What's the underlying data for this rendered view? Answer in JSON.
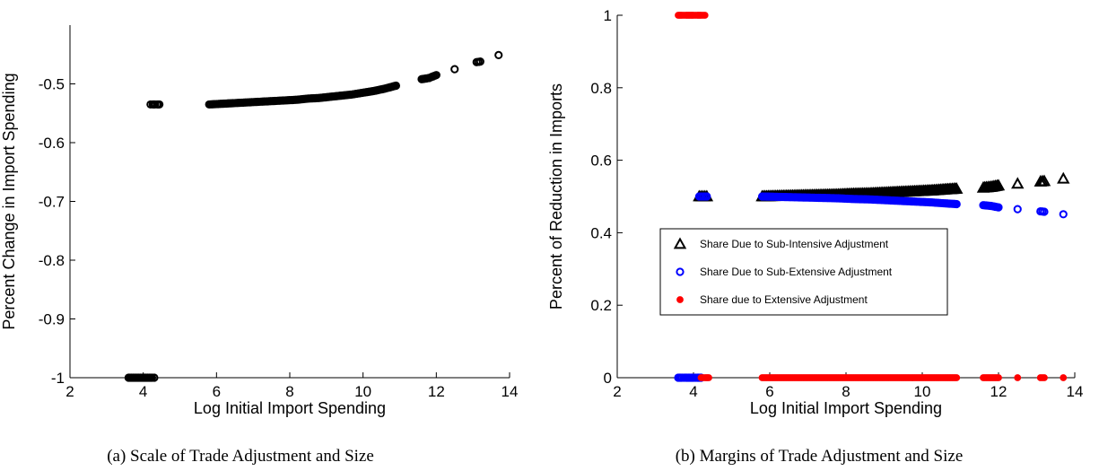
{
  "captions": {
    "a": "(a) Scale of Trade Adjustment and Size",
    "b": "(b) Margins of Trade Adjustment and Size"
  },
  "chart_data": [
    {
      "type": "scatter",
      "xlabel": "Log Initial Import Spending",
      "ylabel": "Percent Change in Import Spending",
      "xlim": [
        2,
        14
      ],
      "ylim": [
        -1,
        -0.4
      ],
      "xticks": [
        "2",
        "4",
        "6",
        "8",
        "10",
        "12",
        "14"
      ],
      "yticks": [
        "-1",
        "-0.9",
        "-0.8",
        "-0.7",
        "-0.6",
        "-0.5"
      ],
      "grid": false,
      "series": [
        {
          "marker": "open-circle",
          "color": "#000000",
          "x": [
            3.6,
            3.68,
            3.76,
            3.84,
            3.92,
            4.0,
            4.08,
            4.16,
            4.24,
            4.3,
            4.2,
            4.26,
            4.32,
            4.38,
            4.44,
            5.8,
            6.1,
            6.4,
            6.7,
            7.0,
            7.3,
            7.6,
            7.9,
            8.2,
            8.5,
            8.8,
            9.1,
            9.4,
            9.7,
            10.0,
            10.3,
            10.6,
            10.9,
            11.6,
            11.8,
            12.0,
            12.5,
            13.1,
            13.2,
            13.7
          ],
          "y": [
            -1,
            -1,
            -1,
            -1,
            -1,
            -1,
            -1,
            -1,
            -1,
            -1,
            -0.535,
            -0.535,
            -0.535,
            -0.535,
            -0.535,
            -0.535,
            -0.534,
            -0.533,
            -0.532,
            -0.531,
            -0.53,
            -0.529,
            -0.528,
            -0.527,
            -0.525,
            -0.524,
            -0.522,
            -0.52,
            -0.518,
            -0.515,
            -0.512,
            -0.508,
            -0.503,
            -0.492,
            -0.49,
            -0.485,
            -0.475,
            -0.463,
            -0.462,
            -0.451
          ]
        }
      ]
    },
    {
      "type": "scatter",
      "xlabel": "Log Initial Import Spending",
      "ylabel": "Percent of Reduction in Imports",
      "xlim": [
        2,
        14
      ],
      "ylim": [
        0,
        1
      ],
      "xticks": [
        "2",
        "4",
        "6",
        "8",
        "10",
        "12",
        "14"
      ],
      "yticks": [
        "0",
        "0.2",
        "0.4",
        "0.6",
        "0.8",
        "1"
      ],
      "grid": false,
      "legend": "center-left",
      "series": [
        {
          "name": "Share Due to Sub-Intensive Adjustment",
          "marker": "open-triangle",
          "color": "#000000",
          "x": [
            4.15,
            4.25,
            4.35,
            5.8,
            6.2,
            6.6,
            7.0,
            7.4,
            7.8,
            8.2,
            8.6,
            9.0,
            9.4,
            9.8,
            10.2,
            10.6,
            10.9,
            11.6,
            11.8,
            12.0,
            12.5,
            13.1,
            13.2,
            13.7
          ],
          "y": [
            0.5,
            0.5,
            0.5,
            0.5,
            0.501,
            0.502,
            0.503,
            0.504,
            0.505,
            0.507,
            0.508,
            0.51,
            0.512,
            0.514,
            0.516,
            0.519,
            0.521,
            0.524,
            0.526,
            0.53,
            0.535,
            0.541,
            0.542,
            0.549
          ]
        },
        {
          "name": "Share Due to Sub-Extensive Adjustment",
          "marker": "open-circle",
          "color": "#0000ff",
          "x": [
            3.6,
            3.7,
            3.8,
            3.9,
            4.0,
            4.1,
            4.2,
            4.15,
            4.25,
            4.35,
            5.8,
            6.2,
            6.6,
            7.0,
            7.4,
            7.8,
            8.2,
            8.6,
            9.0,
            9.4,
            9.8,
            10.2,
            10.6,
            10.9,
            11.6,
            11.8,
            12.0,
            12.5,
            13.1,
            13.2,
            13.7
          ],
          "y": [
            0,
            0,
            0,
            0,
            0,
            0,
            0,
            0.5,
            0.5,
            0.5,
            0.5,
            0.499,
            0.498,
            0.497,
            0.496,
            0.495,
            0.493,
            0.492,
            0.49,
            0.488,
            0.486,
            0.484,
            0.481,
            0.479,
            0.476,
            0.474,
            0.47,
            0.465,
            0.459,
            0.458,
            0.451
          ]
        },
        {
          "name": "Share due to Extensive Adjustment",
          "marker": "filled-circle",
          "color": "#ff0000",
          "x": [
            3.6,
            3.7,
            3.8,
            3.9,
            4.0,
            4.1,
            4.2,
            4.3,
            4.2,
            4.3,
            4.4,
            5.8,
            6.2,
            6.6,
            7.0,
            7.4,
            7.8,
            8.2,
            8.6,
            9.0,
            9.4,
            9.8,
            10.2,
            10.6,
            10.9,
            11.6,
            11.8,
            12.0,
            12.5,
            13.1,
            13.2,
            13.7
          ],
          "y": [
            1,
            1,
            1,
            1,
            1,
            1,
            1,
            1,
            0,
            0,
            0,
            0,
            0,
            0,
            0,
            0,
            0,
            0,
            0,
            0,
            0,
            0,
            0,
            0,
            0,
            0,
            0,
            0,
            0,
            0,
            0,
            0
          ]
        }
      ]
    }
  ]
}
